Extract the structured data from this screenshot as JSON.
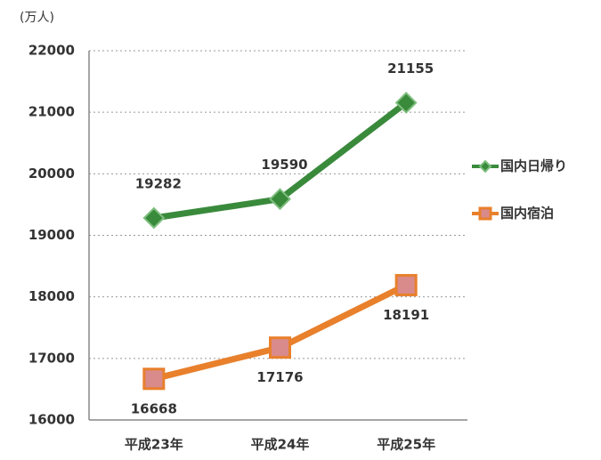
{
  "chart_data": {
    "type": "line",
    "y_axis_label": "(万人)",
    "categories": [
      "平成23年",
      "平成24年",
      "平成25年"
    ],
    "series": [
      {
        "name": "国内日帰り",
        "color": "#3a8a3c",
        "marker_fill": "#3a8a3c",
        "marker": "diamond",
        "label_position": "above",
        "values": [
          19282,
          19590,
          21155
        ]
      },
      {
        "name": "国内宿泊",
        "color": "#e8802c",
        "marker_fill": "#d98a8a",
        "marker": "square",
        "label_position": "below",
        "values": [
          16668,
          17176,
          18191
        ]
      }
    ],
    "ylim": [
      16000,
      22000
    ],
    "yticks": [
      16000,
      17000,
      18000,
      19000,
      20000,
      21000,
      22000
    ],
    "grid": true,
    "legend": "right"
  }
}
